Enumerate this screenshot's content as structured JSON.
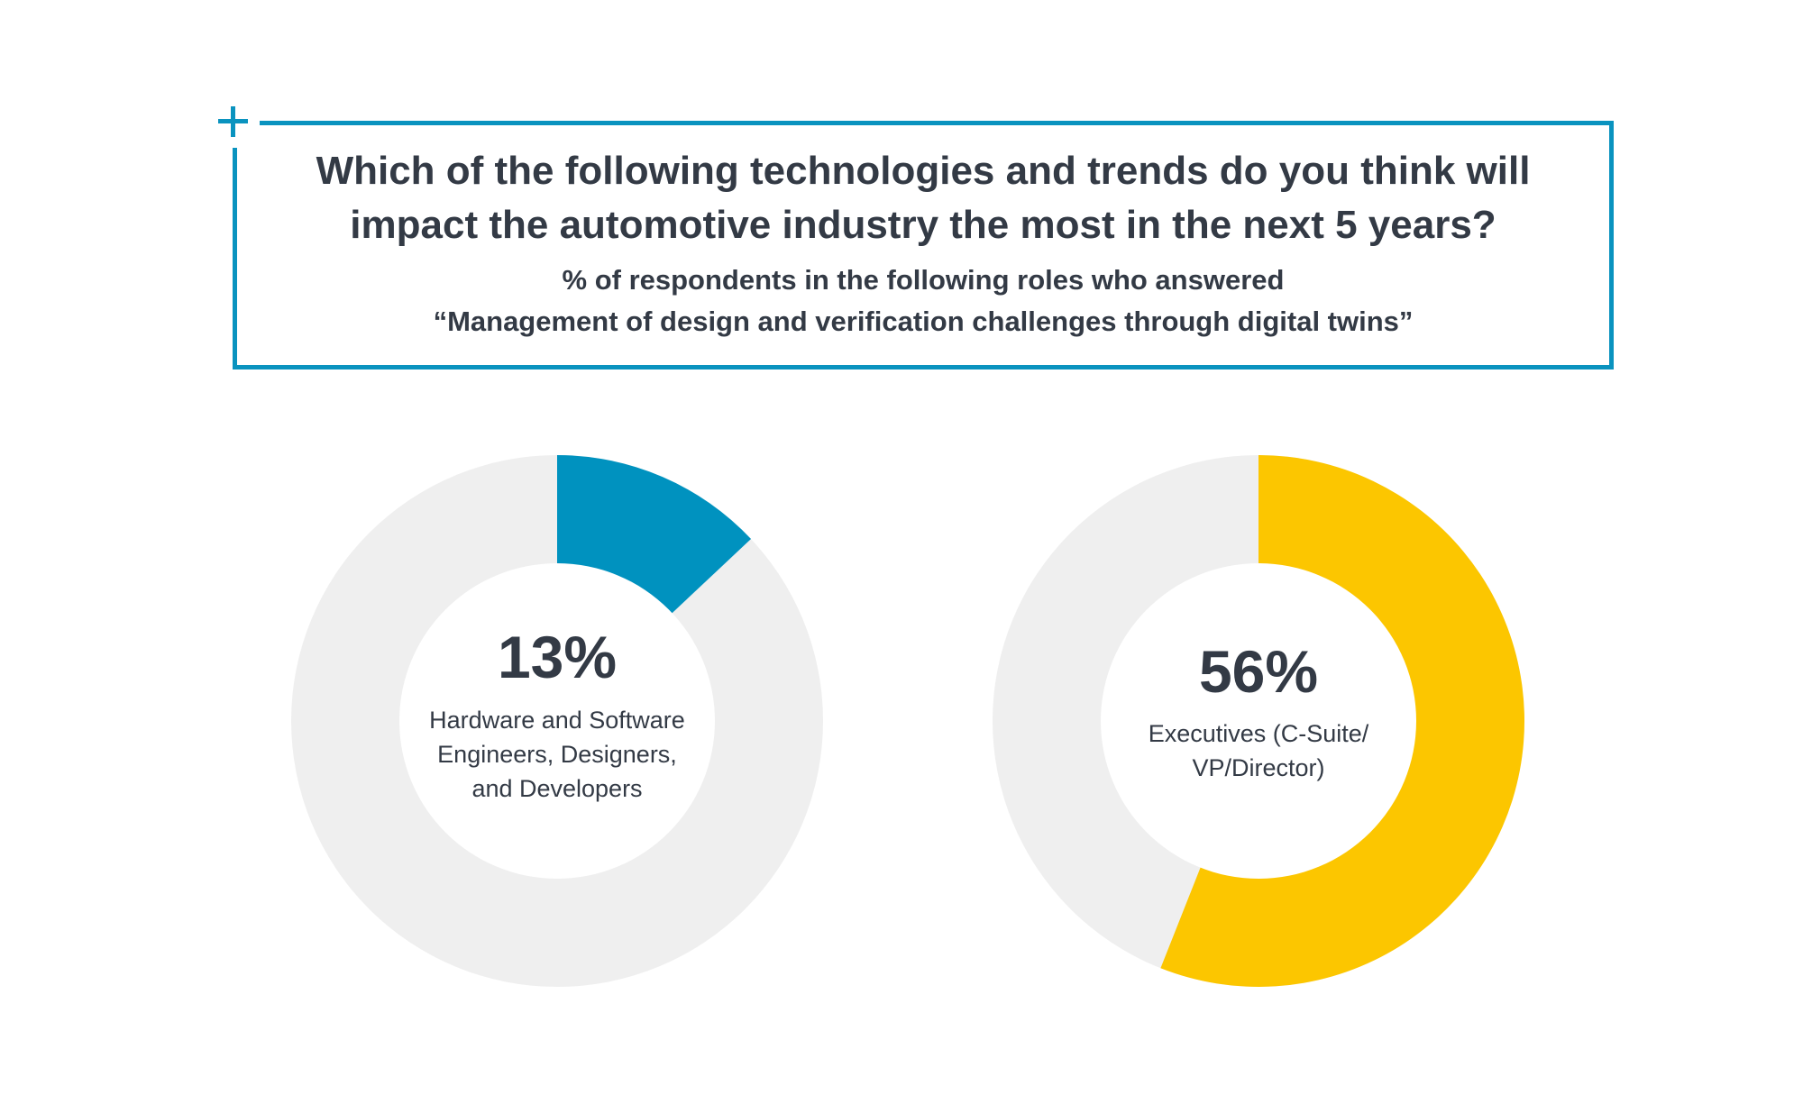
{
  "header": {
    "question_line1": "Which of the following technologies and trends do you think will",
    "question_line2": "impact the automotive industry the most in the next 5 years?",
    "subtitle_line1": "% of respondents in the following roles who answered",
    "subtitle_line2": "“Management of design and verification challenges through digital twins”",
    "accent_color": "#0a93bf"
  },
  "chart_data": [
    {
      "type": "pie",
      "value": 13,
      "value_label": "13%",
      "label_lines": [
        "Hardware and Software",
        "Engineers, Designers,",
        "and Developers"
      ],
      "color": "#0092bf",
      "remainder_color": "#efefef"
    },
    {
      "type": "pie",
      "value": 56,
      "value_label": "56%",
      "label_lines": [
        "Executives (C-Suite/",
        "VP/Director)"
      ],
      "color": "#fcc600",
      "remainder_color": "#efefef"
    }
  ]
}
